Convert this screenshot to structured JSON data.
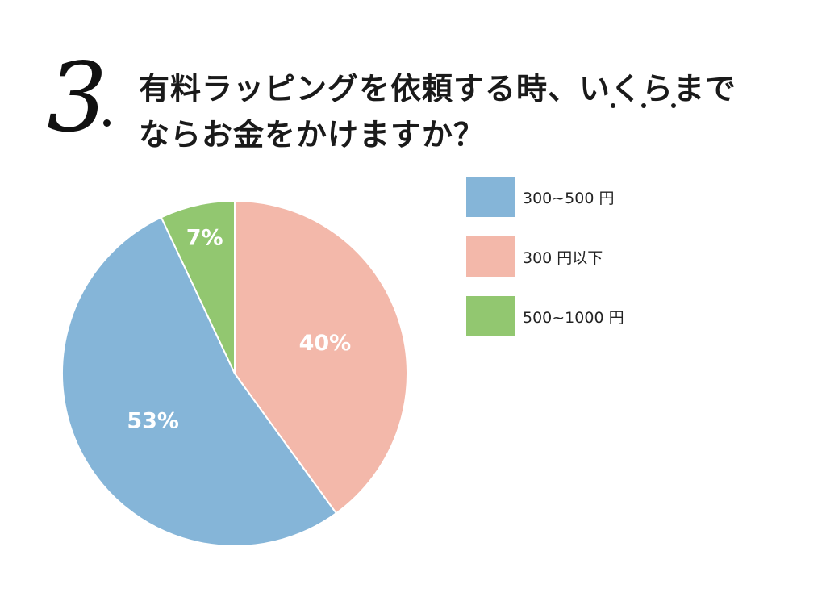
{
  "question": {
    "number": "3",
    "title_line1": "有料ラッピングを依頼する時、いくらまで",
    "title_line2": "ならお金をかけますか？"
  },
  "chart_data": {
    "type": "pie",
    "slices": [
      {
        "label": "300円以下",
        "value": 40,
        "display": "40%",
        "color": "#f3b8aa"
      },
      {
        "label": "300~500 円",
        "value": 53,
        "display": "53%",
        "color": "#85b5d8"
      },
      {
        "label": "500~1000 円",
        "value": 7,
        "display": "7%",
        "color": "#92c770"
      }
    ],
    "legend": [
      {
        "label": "300~500 円",
        "color": "#85b5d8"
      },
      {
        "label": "300 円以下",
        "color": "#f3b8aa"
      },
      {
        "label": "500~1000 円",
        "color": "#92c770"
      }
    ],
    "start": "top",
    "direction": "clockwise",
    "legend_position": "right"
  }
}
